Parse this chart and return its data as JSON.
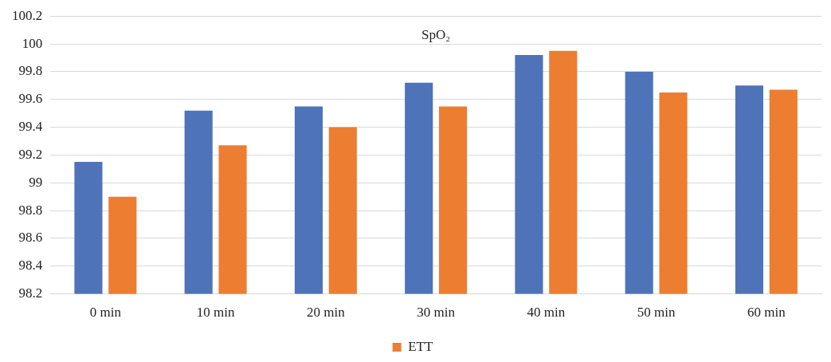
{
  "chart_data": {
    "type": "bar",
    "title": "SpO₂",
    "categories": [
      "0 min",
      "10 min",
      "20 min",
      "30 min",
      "40 min",
      "50 min",
      "60 min"
    ],
    "series": [
      {
        "color": "#4e73b8",
        "values": [
          99.15,
          99.52,
          99.55,
          99.72,
          99.92,
          99.8,
          99.7
        ]
      },
      {
        "name": "ETT",
        "color": "#ed7d31",
        "values": [
          98.9,
          99.27,
          99.4,
          99.55,
          99.95,
          99.65,
          99.67
        ]
      }
    ],
    "ylim": [
      98.2,
      100.2
    ],
    "yticks": [
      98.2,
      98.4,
      98.6,
      98.8,
      99,
      99.2,
      99.4,
      99.6,
      99.8,
      100,
      100.2
    ],
    "grid": "y",
    "legend": "bottom"
  }
}
